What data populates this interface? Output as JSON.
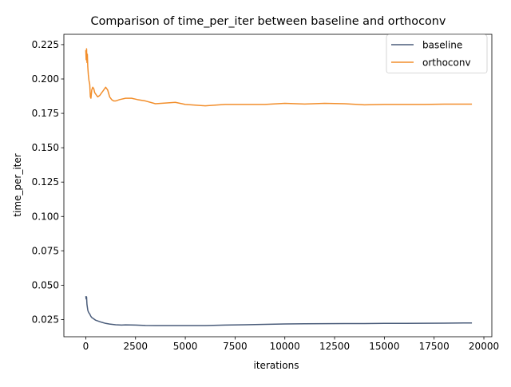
{
  "chart_data": {
    "type": "line",
    "title": "Comparison of time_per_iter between baseline and orthoconv",
    "xlabel": "iterations",
    "ylabel": "time_per_iter",
    "xlim": [
      -1100,
      20400
    ],
    "ylim": [
      0.0125,
      0.2325
    ],
    "xticks": [
      0,
      2500,
      5000,
      7500,
      10000,
      12500,
      15000,
      17500,
      20000
    ],
    "xtick_labels": [
      "0",
      "2500",
      "5000",
      "7500",
      "10000",
      "12500",
      "15000",
      "17500",
      "20000"
    ],
    "yticks": [
      0.025,
      0.05,
      0.075,
      0.1,
      0.125,
      0.15,
      0.175,
      0.2,
      0.225
    ],
    "ytick_labels": [
      "0.025",
      "0.050",
      "0.075",
      "0.100",
      "0.125",
      "0.150",
      "0.175",
      "0.200",
      "0.225"
    ],
    "grid": false,
    "legend_position": "top-right",
    "series": [
      {
        "name": "baseline",
        "color": "#4a5c7a",
        "x": [
          0,
          20,
          40,
          60,
          80,
          100,
          120,
          150,
          200,
          250,
          300,
          350,
          400,
          500,
          600,
          700,
          800,
          1000,
          1200,
          1500,
          1800,
          2000,
          2500,
          3000,
          3500,
          4000,
          5000,
          6000,
          7000,
          8000,
          9000,
          10000,
          11000,
          12000,
          13000,
          14000,
          15000,
          16000,
          17000,
          18000,
          19000,
          19400
        ],
        "y": [
          0.042,
          0.04,
          0.0415,
          0.036,
          0.034,
          0.032,
          0.031,
          0.03,
          0.029,
          0.0275,
          0.0265,
          0.026,
          0.0255,
          0.0245,
          0.024,
          0.0235,
          0.023,
          0.0222,
          0.0217,
          0.0212,
          0.021,
          0.0211,
          0.021,
          0.0207,
          0.0206,
          0.0206,
          0.0206,
          0.0206,
          0.021,
          0.0212,
          0.0215,
          0.0218,
          0.0219,
          0.022,
          0.0221,
          0.0221,
          0.0222,
          0.0222,
          0.0223,
          0.0224,
          0.0225,
          0.0225
        ]
      },
      {
        "name": "orthoconv",
        "color": "#f28e2b",
        "x": [
          0,
          20,
          40,
          60,
          80,
          100,
          130,
          160,
          200,
          230,
          260,
          300,
          350,
          400,
          450,
          500,
          550,
          600,
          700,
          800,
          900,
          1000,
          1100,
          1200,
          1300,
          1400,
          1500,
          1700,
          2000,
          2300,
          2600,
          3000,
          3500,
          4000,
          4500,
          5000,
          5500,
          6000,
          6500,
          7000,
          8000,
          9000,
          10000,
          11000,
          12000,
          13000,
          14000,
          15000,
          16000,
          17000,
          18000,
          19000,
          19400
        ],
        "y": [
          0.221,
          0.214,
          0.222,
          0.212,
          0.218,
          0.209,
          0.203,
          0.199,
          0.196,
          0.187,
          0.186,
          0.192,
          0.194,
          0.193,
          0.19,
          0.189,
          0.188,
          0.187,
          0.188,
          0.19,
          0.192,
          0.194,
          0.192,
          0.187,
          0.185,
          0.184,
          0.184,
          0.185,
          0.186,
          0.186,
          0.185,
          0.184,
          0.182,
          0.1825,
          0.183,
          0.1815,
          0.181,
          0.1805,
          0.181,
          0.1815,
          0.1815,
          0.1815,
          0.1823,
          0.1818,
          0.1823,
          0.182,
          0.1812,
          0.1815,
          0.1815,
          0.1815,
          0.1817,
          0.1817,
          0.1817
        ]
      }
    ]
  }
}
